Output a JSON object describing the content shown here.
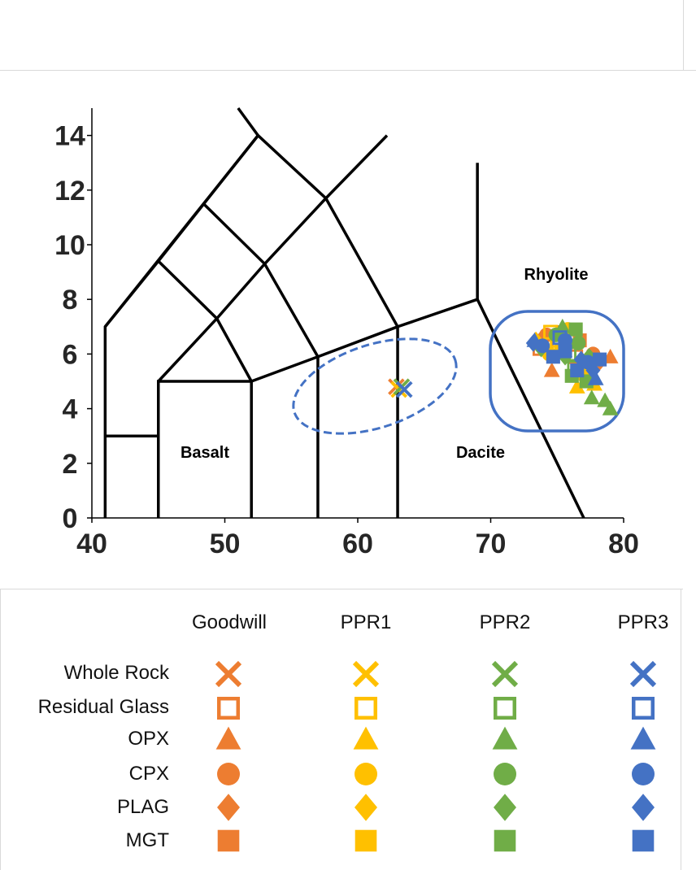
{
  "chart_data": {
    "type": "scatter",
    "title": "",
    "xlabel": "",
    "ylabel": "",
    "xlim": [
      40,
      80
    ],
    "ylim": [
      0,
      15
    ],
    "x_ticks": [
      "40",
      "50",
      "60",
      "70",
      "80"
    ],
    "y_ticks": [
      "0",
      "2",
      "4",
      "6",
      "8",
      "10",
      "12",
      "14"
    ],
    "field_lines": [
      [
        [
          41,
          0
        ],
        [
          41,
          7
        ],
        [
          45,
          9.4
        ],
        [
          52.5,
          14
        ],
        [
          57.6,
          11.7
        ],
        [
          63,
          7
        ],
        [
          69,
          8
        ],
        [
          77,
          0
        ]
      ],
      [
        [
          41,
          3
        ],
        [
          45,
          3
        ]
      ],
      [
        [
          45,
          0
        ],
        [
          45,
          5
        ],
        [
          52,
          5
        ],
        [
          52,
          0
        ]
      ],
      [
        [
          45,
          5
        ],
        [
          49.4,
          7.3
        ],
        [
          53,
          9.3
        ],
        [
          57.6,
          11.7
        ]
      ],
      [
        [
          52,
          5
        ],
        [
          57,
          5.9
        ],
        [
          63,
          7
        ]
      ],
      [
        [
          57,
          0
        ],
        [
          57,
          5.9
        ]
      ],
      [
        [
          63,
          0
        ],
        [
          63,
          7
        ]
      ],
      [
        [
          69,
          8
        ],
        [
          69,
          13
        ]
      ],
      [
        [
          45,
          9.4
        ],
        [
          49.4,
          7.3
        ],
        [
          52,
          5
        ]
      ],
      [
        [
          48.4,
          11.5
        ],
        [
          53,
          9.3
        ],
        [
          57,
          5.9
        ]
      ],
      [
        [
          52.5,
          14
        ],
        [
          48.4,
          11.5
        ],
        [
          41,
          7
        ]
      ],
      [
        [
          57.6,
          11.7
        ],
        [
          62.2,
          14
        ]
      ],
      [
        [
          51,
          15
        ],
        [
          52.5,
          14
        ]
      ]
    ],
    "regions": [
      "Basalt",
      "Dacite",
      "Rhyolite"
    ],
    "series": [
      {
        "name": "Goodwill",
        "color": "#ED7D31",
        "whole_rock": [
          [
            62.9,
            4.8
          ]
        ],
        "residual_glass": [
          [
            73.7,
            6.2
          ],
          [
            75.1,
            6.3
          ],
          [
            76.4,
            5.9
          ]
        ],
        "opx": [
          [
            79,
            5.9
          ],
          [
            74.6,
            5.4
          ]
        ],
        "cpx": [
          [
            74.2,
            6.7
          ],
          [
            77.7,
            6.0
          ]
        ],
        "plag": [
          [
            73.9,
            6.6
          ],
          [
            78.0,
            5.6
          ]
        ],
        "mgt": [
          [
            75.5,
            6.8
          ],
          [
            76.7,
            6.5
          ]
        ]
      },
      {
        "name": "PPR1",
        "color": "#FFC000",
        "whole_rock": [
          [
            63.1,
            4.7
          ]
        ],
        "residual_glass": [
          [
            74.5,
            6.8
          ],
          [
            75.0,
            6.5
          ]
        ],
        "opx": [
          [
            76.5,
            4.8
          ],
          [
            77.8,
            4.9
          ]
        ],
        "cpx": [
          [
            74.4,
            6.0
          ],
          [
            75.8,
            6.9
          ]
        ],
        "plag": [
          [
            73.4,
            6.5
          ],
          [
            76.9,
            5.2
          ]
        ],
        "mgt": [
          [
            75.3,
            6.1
          ],
          [
            77.5,
            5.3
          ]
        ]
      },
      {
        "name": "PPR2",
        "color": "#70AD47",
        "whole_rock": [
          [
            63.3,
            4.8
          ]
        ],
        "residual_glass": [
          [
            75.9,
            6.0
          ],
          [
            76.3,
            5.5
          ]
        ],
        "opx": [
          [
            77.6,
            4.4
          ],
          [
            78.6,
            4.3
          ],
          [
            79.0,
            4.0
          ],
          [
            75.4,
            7.0
          ]
        ],
        "cpx": [
          [
            74.9,
            6.7
          ],
          [
            76.6,
            6.4
          ]
        ],
        "plag": [
          [
            73.8,
            6.2
          ],
          [
            75.6,
            5.9
          ],
          [
            77.4,
            5.9
          ]
        ],
        "mgt": [
          [
            76.1,
            5.2
          ],
          [
            77.2,
            5.0
          ],
          [
            76.4,
            6.9
          ]
        ]
      },
      {
        "name": "PPR3",
        "color": "#4472C4",
        "whole_rock": [
          [
            63.5,
            4.7
          ]
        ],
        "residual_glass": [
          [
            75.2,
            6.6
          ]
        ],
        "opx": [
          [
            77.9,
            5.1
          ],
          [
            73.3,
            6.5
          ]
        ],
        "cpx": [
          [
            75.6,
            6.5
          ],
          [
            77.3,
            5.7
          ],
          [
            73.9,
            6.3
          ]
        ],
        "plag": [
          [
            73.2,
            6.4
          ],
          [
            77.7,
            5.4
          ],
          [
            76.8,
            5.8
          ]
        ],
        "mgt": [
          [
            75.6,
            6.1
          ],
          [
            74.7,
            5.9
          ],
          [
            76.5,
            5.4
          ],
          [
            78.2,
            5.8
          ]
        ]
      }
    ],
    "annotations": [
      "Basalt",
      "Dacite",
      "Rhyolite"
    ]
  },
  "legend": {
    "columns": [
      "Goodwill",
      "PPR1",
      "PPR2",
      "PPR3"
    ],
    "rows": [
      "Whole Rock",
      "Residual Glass",
      "OPX",
      "CPX",
      "PLAG",
      "MGT"
    ],
    "row_markers": [
      "x-icon",
      "open-square-icon",
      "triangle-icon",
      "circle-icon",
      "diamond-icon",
      "square-icon"
    ],
    "colors": [
      "#ED7D31",
      "#FFC000",
      "#70AD47",
      "#4472C4"
    ]
  },
  "colors": {
    "ellipse": "#4472C4",
    "lines": "#000000",
    "frame": "#D9D9D9"
  }
}
